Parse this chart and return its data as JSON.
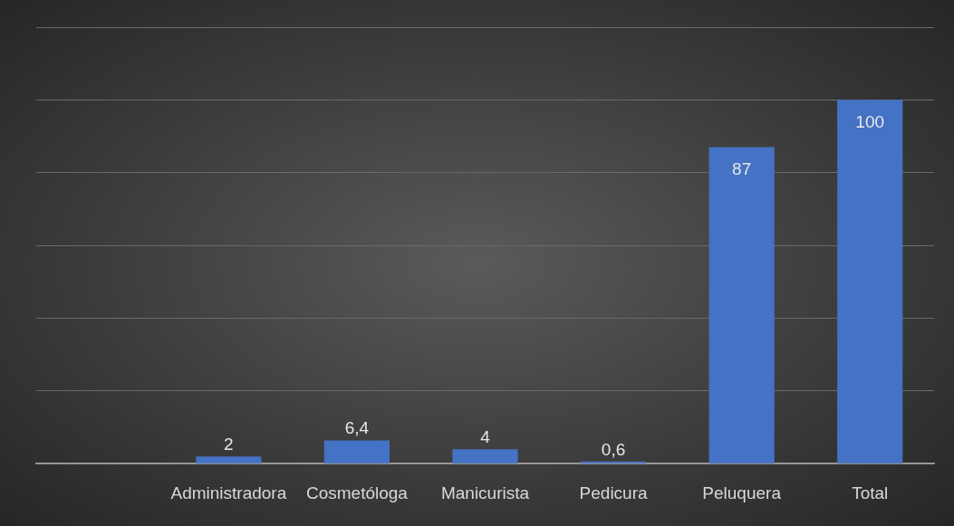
{
  "chart_data": {
    "type": "bar",
    "categories": [
      null,
      "Administradora",
      "Cosmetóloga",
      "Manicurista",
      "Pedicura",
      "Peluquera",
      "Total"
    ],
    "values": [
      null,
      2,
      6.4,
      4,
      0.6,
      87,
      100
    ],
    "value_labels": [
      null,
      "2",
      "6,4",
      "4",
      "0,6",
      "87",
      "100"
    ],
    "color": "#4472c4",
    "ylim": [
      0,
      120
    ],
    "yticks": [
      {
        "value": 0,
        "label": null
      },
      {
        "value": 20,
        "label": null
      },
      {
        "value": 40,
        "label": null
      },
      {
        "value": 60,
        "label": null
      },
      {
        "value": 80,
        "label": null
      },
      {
        "value": 100,
        "label": null
      },
      {
        "value": 120,
        "label": null
      }
    ],
    "grid": "y",
    "legend": false,
    "tick_labels": "x"
  }
}
